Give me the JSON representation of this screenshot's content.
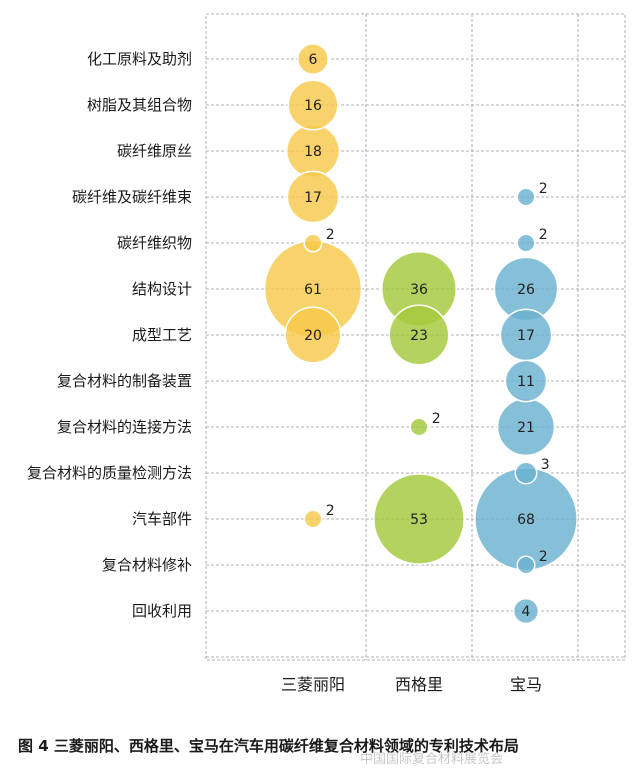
{
  "chart_data": {
    "type": "bubble",
    "categories_y": [
      "化工原料及助剂",
      "树脂及其组合物",
      "碳纤维原丝",
      "碳纤维及碳纤维束",
      "碳纤维织物",
      "结构设计",
      "成型工艺",
      "复合材料的制备装置",
      "复合材料的连接方法",
      "复合材料的质量检测方法",
      "汽车部件",
      "复合材料修补",
      "回收利用"
    ],
    "categories_x": [
      "三菱丽阳",
      "西格里",
      "宝马"
    ],
    "series": [
      {
        "name": "三菱丽阳",
        "color": "#f6c84a",
        "points": [
          {
            "row": 0,
            "value": 6
          },
          {
            "row": 1,
            "value": 16
          },
          {
            "row": 2,
            "value": 18
          },
          {
            "row": 3,
            "value": 17
          },
          {
            "row": 4,
            "value": 2
          },
          {
            "row": 5,
            "value": 61
          },
          {
            "row": 6,
            "value": 20
          },
          {
            "row": 10,
            "value": 2
          }
        ]
      },
      {
        "name": "西格里",
        "color": "#a3c93a",
        "points": [
          {
            "row": 5,
            "value": 36
          },
          {
            "row": 6,
            "value": 23
          },
          {
            "row": 8,
            "value": 2
          },
          {
            "row": 10,
            "value": 53
          }
        ]
      },
      {
        "name": "宝马",
        "color": "#6ab2cf",
        "points": [
          {
            "row": 3,
            "value": 2
          },
          {
            "row": 4,
            "value": 2
          },
          {
            "row": 5,
            "value": 26
          },
          {
            "row": 6,
            "value": 17
          },
          {
            "row": 7,
            "value": 11
          },
          {
            "row": 8,
            "value": 21
          },
          {
            "row": 9,
            "value": 3
          },
          {
            "row": 10,
            "value": 68
          },
          {
            "row": 11,
            "value": 2
          },
          {
            "row": 12,
            "value": 4
          }
        ]
      }
    ],
    "grid": true,
    "title": "图 4 三菱丽阳、西格里、宝马在汽车用碳纤维复合材料领域的专利技术布局"
  },
  "watermark": "中国国际复合材料展览会"
}
